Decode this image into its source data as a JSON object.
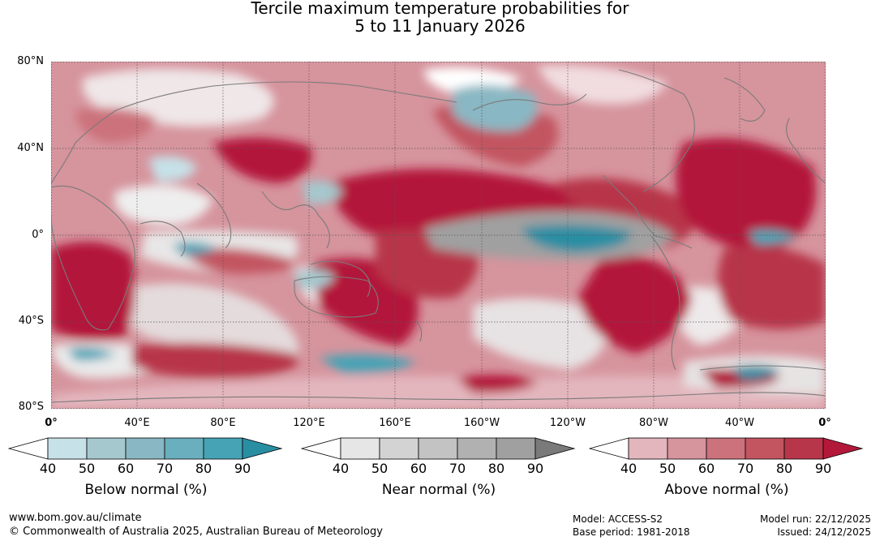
{
  "title": {
    "line1": "Tercile maximum temperature probabilities for",
    "line2": "5 to 11 January 2026"
  },
  "map": {
    "lat_labels": [
      "80°N",
      "40°N",
      "0°",
      "40°S",
      "80°S"
    ],
    "lon_labels": [
      "0°",
      "40°E",
      "80°E",
      "120°E",
      "160°E",
      "160°W",
      "120°W",
      "80°W",
      "40°W",
      "0°"
    ]
  },
  "legends": [
    {
      "title": "Below normal (%)",
      "ticks": [
        "40",
        "50",
        "60",
        "70",
        "80",
        "90"
      ],
      "colors": [
        "#ffffff",
        "#c6e1e8",
        "#a5c8ce",
        "#89b7c3",
        "#6aafbe",
        "#46a3b6",
        "#2a8ea3"
      ]
    },
    {
      "title": "Near normal (%)",
      "ticks": [
        "40",
        "50",
        "60",
        "70",
        "80",
        "90"
      ],
      "colors": [
        "#ffffff",
        "#e6e6e6",
        "#d3d3d3",
        "#c3c3c3",
        "#b1b1b1",
        "#a0a0a0",
        "#7a7a7a"
      ]
    },
    {
      "title": "Above normal (%)",
      "ticks": [
        "40",
        "50",
        "60",
        "70",
        "80",
        "90"
      ],
      "colors": [
        "#ffffff",
        "#e3b6bd",
        "#d6949d",
        "#cc727c",
        "#c25560",
        "#b8364a",
        "#b3183a"
      ]
    }
  ],
  "footer": {
    "url": "www.bom.gov.au/climate",
    "copyright": "© Commonwealth of Australia 2025, Australian Bureau of Meteorology",
    "model": "Model: ACCESS-S2",
    "base_period": "Base period: 1981-2018",
    "model_run": "Model run: 22/12/2025",
    "issued": "Issued: 24/12/2025"
  },
  "palette": {
    "above": "#c93a52",
    "below": "#4aa6b8",
    "near": "#9c9c9c",
    "coast": "#7a7a7a"
  }
}
